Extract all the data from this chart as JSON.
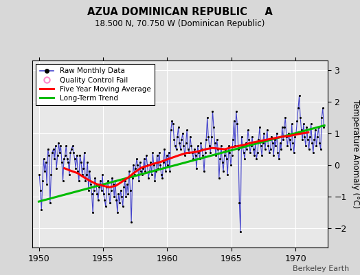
{
  "title": "AZUA DOMINICAN REPUBLIC     A",
  "subtitle": "18.500 N, 70.750 W (Dominican Republic)",
  "ylabel": "Temperature Anomaly (°C)",
  "watermark": "Berkeley Earth",
  "xlim": [
    1949.5,
    1972.5
  ],
  "ylim": [
    -2.6,
    3.3
  ],
  "yticks": [
    -2,
    -1,
    0,
    1,
    2,
    3
  ],
  "xticks": [
    1950,
    1955,
    1960,
    1965,
    1970
  ],
  "bg_color": "#e8e8e8",
  "outer_bg": "#d8d8d8",
  "raw_color": "#4444cc",
  "raw_marker_color": "#000000",
  "mavg_color": "#ff0000",
  "trend_color": "#00bb00",
  "qc_color": "#ff88cc",
  "raw_data_t": [
    1950.042,
    1950.125,
    1950.208,
    1950.292,
    1950.375,
    1950.458,
    1950.542,
    1950.625,
    1950.708,
    1950.792,
    1950.875,
    1950.958,
    1951.042,
    1951.125,
    1951.208,
    1951.292,
    1951.375,
    1951.458,
    1951.542,
    1951.625,
    1951.708,
    1951.792,
    1951.875,
    1951.958,
    1952.042,
    1952.125,
    1952.208,
    1952.292,
    1952.375,
    1952.458,
    1952.542,
    1952.625,
    1952.708,
    1952.792,
    1952.875,
    1952.958,
    1953.042,
    1953.125,
    1953.208,
    1953.292,
    1953.375,
    1953.458,
    1953.542,
    1953.625,
    1953.708,
    1953.792,
    1953.875,
    1953.958,
    1954.042,
    1954.125,
    1954.208,
    1954.292,
    1954.375,
    1954.458,
    1954.542,
    1954.625,
    1954.708,
    1954.792,
    1954.875,
    1954.958,
    1955.042,
    1955.125,
    1955.208,
    1955.292,
    1955.375,
    1955.458,
    1955.542,
    1955.625,
    1955.708,
    1955.792,
    1955.875,
    1955.958,
    1956.042,
    1956.125,
    1956.208,
    1956.292,
    1956.375,
    1956.458,
    1956.542,
    1956.625,
    1956.708,
    1956.792,
    1956.875,
    1956.958,
    1957.042,
    1957.125,
    1957.208,
    1957.292,
    1957.375,
    1957.458,
    1957.542,
    1957.625,
    1957.708,
    1957.792,
    1957.875,
    1957.958,
    1958.042,
    1958.125,
    1958.208,
    1958.292,
    1958.375,
    1958.458,
    1958.542,
    1958.625,
    1958.708,
    1958.792,
    1958.875,
    1958.958,
    1959.042,
    1959.125,
    1959.208,
    1959.292,
    1959.375,
    1959.458,
    1959.542,
    1959.625,
    1959.708,
    1959.792,
    1959.875,
    1959.958,
    1960.042,
    1960.125,
    1960.208,
    1960.292,
    1960.375,
    1960.458,
    1960.542,
    1960.625,
    1960.708,
    1960.792,
    1960.875,
    1960.958,
    1961.042,
    1961.125,
    1961.208,
    1961.292,
    1961.375,
    1961.458,
    1961.542,
    1961.625,
    1961.708,
    1961.792,
    1961.875,
    1961.958,
    1962.042,
    1962.125,
    1962.208,
    1962.292,
    1962.375,
    1962.458,
    1962.542,
    1962.625,
    1962.708,
    1962.792,
    1962.875,
    1962.958,
    1963.042,
    1963.125,
    1963.208,
    1963.292,
    1963.375,
    1963.458,
    1963.542,
    1963.625,
    1963.708,
    1963.792,
    1963.875,
    1963.958,
    1964.042,
    1964.125,
    1964.208,
    1964.292,
    1964.375,
    1964.458,
    1964.542,
    1964.625,
    1964.708,
    1964.792,
    1964.875,
    1964.958,
    1965.042,
    1965.125,
    1965.208,
    1965.292,
    1965.375,
    1965.458,
    1965.542,
    1965.625,
    1965.708,
    1965.792,
    1965.875,
    1965.958,
    1966.042,
    1966.125,
    1966.208,
    1966.292,
    1966.375,
    1966.458,
    1966.542,
    1966.625,
    1966.708,
    1966.792,
    1966.875,
    1966.958,
    1967.042,
    1967.125,
    1967.208,
    1967.292,
    1967.375,
    1967.458,
    1967.542,
    1967.625,
    1967.708,
    1967.792,
    1967.875,
    1967.958,
    1968.042,
    1968.125,
    1968.208,
    1968.292,
    1968.375,
    1968.458,
    1968.542,
    1968.625,
    1968.708,
    1968.792,
    1968.875,
    1968.958,
    1969.042,
    1969.125,
    1969.208,
    1969.292,
    1969.375,
    1969.458,
    1969.542,
    1969.625,
    1969.708,
    1969.792,
    1969.875,
    1969.958,
    1970.042,
    1970.125,
    1970.208,
    1970.292,
    1970.375,
    1970.458,
    1970.542,
    1970.625,
    1970.708,
    1970.792,
    1970.875,
    1970.958,
    1971.042,
    1971.125,
    1971.208,
    1971.292,
    1971.375,
    1971.458,
    1971.542,
    1971.625,
    1971.708,
    1971.792,
    1971.875,
    1971.958,
    1972.042,
    1972.125,
    1972.208
  ],
  "raw_data_v": [
    -0.3,
    -0.8,
    -1.4,
    -0.5,
    0.2,
    -0.2,
    0.1,
    -0.6,
    0.5,
    0.3,
    -1.2,
    -0.3,
    0.4,
    0.5,
    0.2,
    0.6,
    -0.1,
    0.3,
    0.7,
    0.4,
    0.6,
    0.1,
    -0.5,
    0.2,
    0.3,
    0.6,
    0.2,
    0.1,
    -0.3,
    0.4,
    0.5,
    0.6,
    0.4,
    0.2,
    -0.1,
    0.3,
    -0.2,
    -0.5,
    0.3,
    0.1,
    -0.3,
    -0.1,
    0.4,
    -0.5,
    -0.3,
    0.1,
    -0.8,
    -0.2,
    -0.6,
    -0.9,
    -1.5,
    -0.8,
    -0.4,
    -0.6,
    -0.9,
    -1.1,
    -0.7,
    -0.5,
    -0.8,
    -0.3,
    -0.9,
    -1.1,
    -1.3,
    -0.7,
    -0.5,
    -0.9,
    -1.2,
    -0.8,
    -0.4,
    -0.6,
    -1.0,
    -0.5,
    -1.1,
    -1.5,
    -0.9,
    -1.2,
    -0.8,
    -1.0,
    -1.3,
    -0.7,
    -0.5,
    -1.0,
    -0.6,
    -0.9,
    -0.2,
    -0.8,
    -1.8,
    -0.4,
    0.0,
    -0.3,
    -0.1,
    0.2,
    0.0,
    -0.5,
    0.1,
    -0.2,
    -0.3,
    -0.1,
    0.2,
    -0.2,
    0.3,
    0.0,
    -0.4,
    -0.2,
    0.1,
    -0.3,
    0.4,
    0.0,
    -0.5,
    -0.2,
    0.3,
    -0.1,
    0.4,
    0.0,
    -0.3,
    -0.4,
    0.1,
    0.5,
    -0.2,
    0.3,
    0.0,
    0.4,
    -0.2,
    1.1,
    1.4,
    1.3,
    0.8,
    0.6,
    0.5,
    0.9,
    1.2,
    0.7,
    0.5,
    0.8,
    1.0,
    0.6,
    0.3,
    0.7,
    1.1,
    0.5,
    0.4,
    0.9,
    0.6,
    0.4,
    0.2,
    0.5,
    0.3,
    -0.1,
    0.6,
    0.4,
    0.2,
    0.7,
    0.5,
    0.3,
    -0.2,
    0.4,
    0.8,
    1.5,
    0.9,
    0.6,
    0.4,
    0.9,
    1.7,
    1.2,
    0.7,
    0.3,
    0.8,
    0.5,
    -0.4,
    0.2,
    0.6,
    0.1,
    -0.2,
    0.3,
    0.5,
    0.2,
    -0.3,
    0.6,
    0.4,
    0.0,
    0.3,
    0.8,
    1.4,
    0.6,
    1.7,
    1.3,
    0.5,
    -1.2,
    -2.1,
    0.9,
    0.6,
    0.4,
    0.2,
    0.7,
    0.5,
    1.1,
    0.8,
    0.4,
    0.6,
    0.9,
    0.5,
    0.3,
    0.7,
    0.2,
    0.4,
    0.8,
    1.2,
    0.6,
    0.3,
    0.7,
    1.0,
    0.5,
    0.8,
    1.1,
    0.6,
    0.4,
    0.5,
    0.9,
    0.7,
    0.3,
    0.8,
    0.6,
    1.0,
    0.4,
    0.2,
    0.7,
    0.5,
    1.2,
    0.8,
    1.2,
    1.5,
    0.9,
    0.6,
    1.0,
    0.8,
    0.5,
    1.3,
    0.7,
    0.4,
    0.9,
    1.0,
    1.4,
    1.8,
    2.2,
    1.5,
    1.1,
    0.8,
    1.3,
    0.9,
    0.6,
    1.2,
    0.8,
    0.5,
    0.9,
    1.3,
    0.7,
    0.4,
    0.8,
    1.1,
    0.6,
    0.9,
    1.2,
    0.7,
    0.5,
    1.5,
    1.8,
    1.2
  ],
  "trend_t": [
    1950.0,
    1972.25
  ],
  "trend_v": [
    -1.15,
    1.25
  ],
  "mavg_t": [
    1952.0,
    1952.5,
    1953.0,
    1953.5,
    1954.0,
    1954.5,
    1955.0,
    1955.5,
    1956.0,
    1956.5,
    1957.0,
    1957.5,
    1958.0,
    1958.5,
    1959.0,
    1959.5,
    1960.0,
    1960.5,
    1961.0,
    1961.5,
    1962.0,
    1962.5,
    1963.0,
    1963.5,
    1964.0,
    1964.5,
    1965.0,
    1965.5,
    1966.0,
    1966.5,
    1967.0,
    1967.5,
    1968.0,
    1968.5,
    1969.0,
    1969.5,
    1970.0,
    1970.5,
    1971.0
  ],
  "mavg_v": [
    -0.1,
    -0.18,
    -0.25,
    -0.38,
    -0.5,
    -0.6,
    -0.65,
    -0.7,
    -0.65,
    -0.52,
    -0.38,
    -0.22,
    -0.08,
    -0.02,
    0.05,
    0.1,
    0.18,
    0.25,
    0.32,
    0.38,
    0.4,
    0.44,
    0.5,
    0.54,
    0.52,
    0.5,
    0.56,
    0.6,
    0.64,
    0.7,
    0.74,
    0.78,
    0.82,
    0.86,
    0.9,
    0.92,
    0.96,
    1.0,
    1.03
  ],
  "qc_fail_t": [],
  "qc_fail_v": []
}
